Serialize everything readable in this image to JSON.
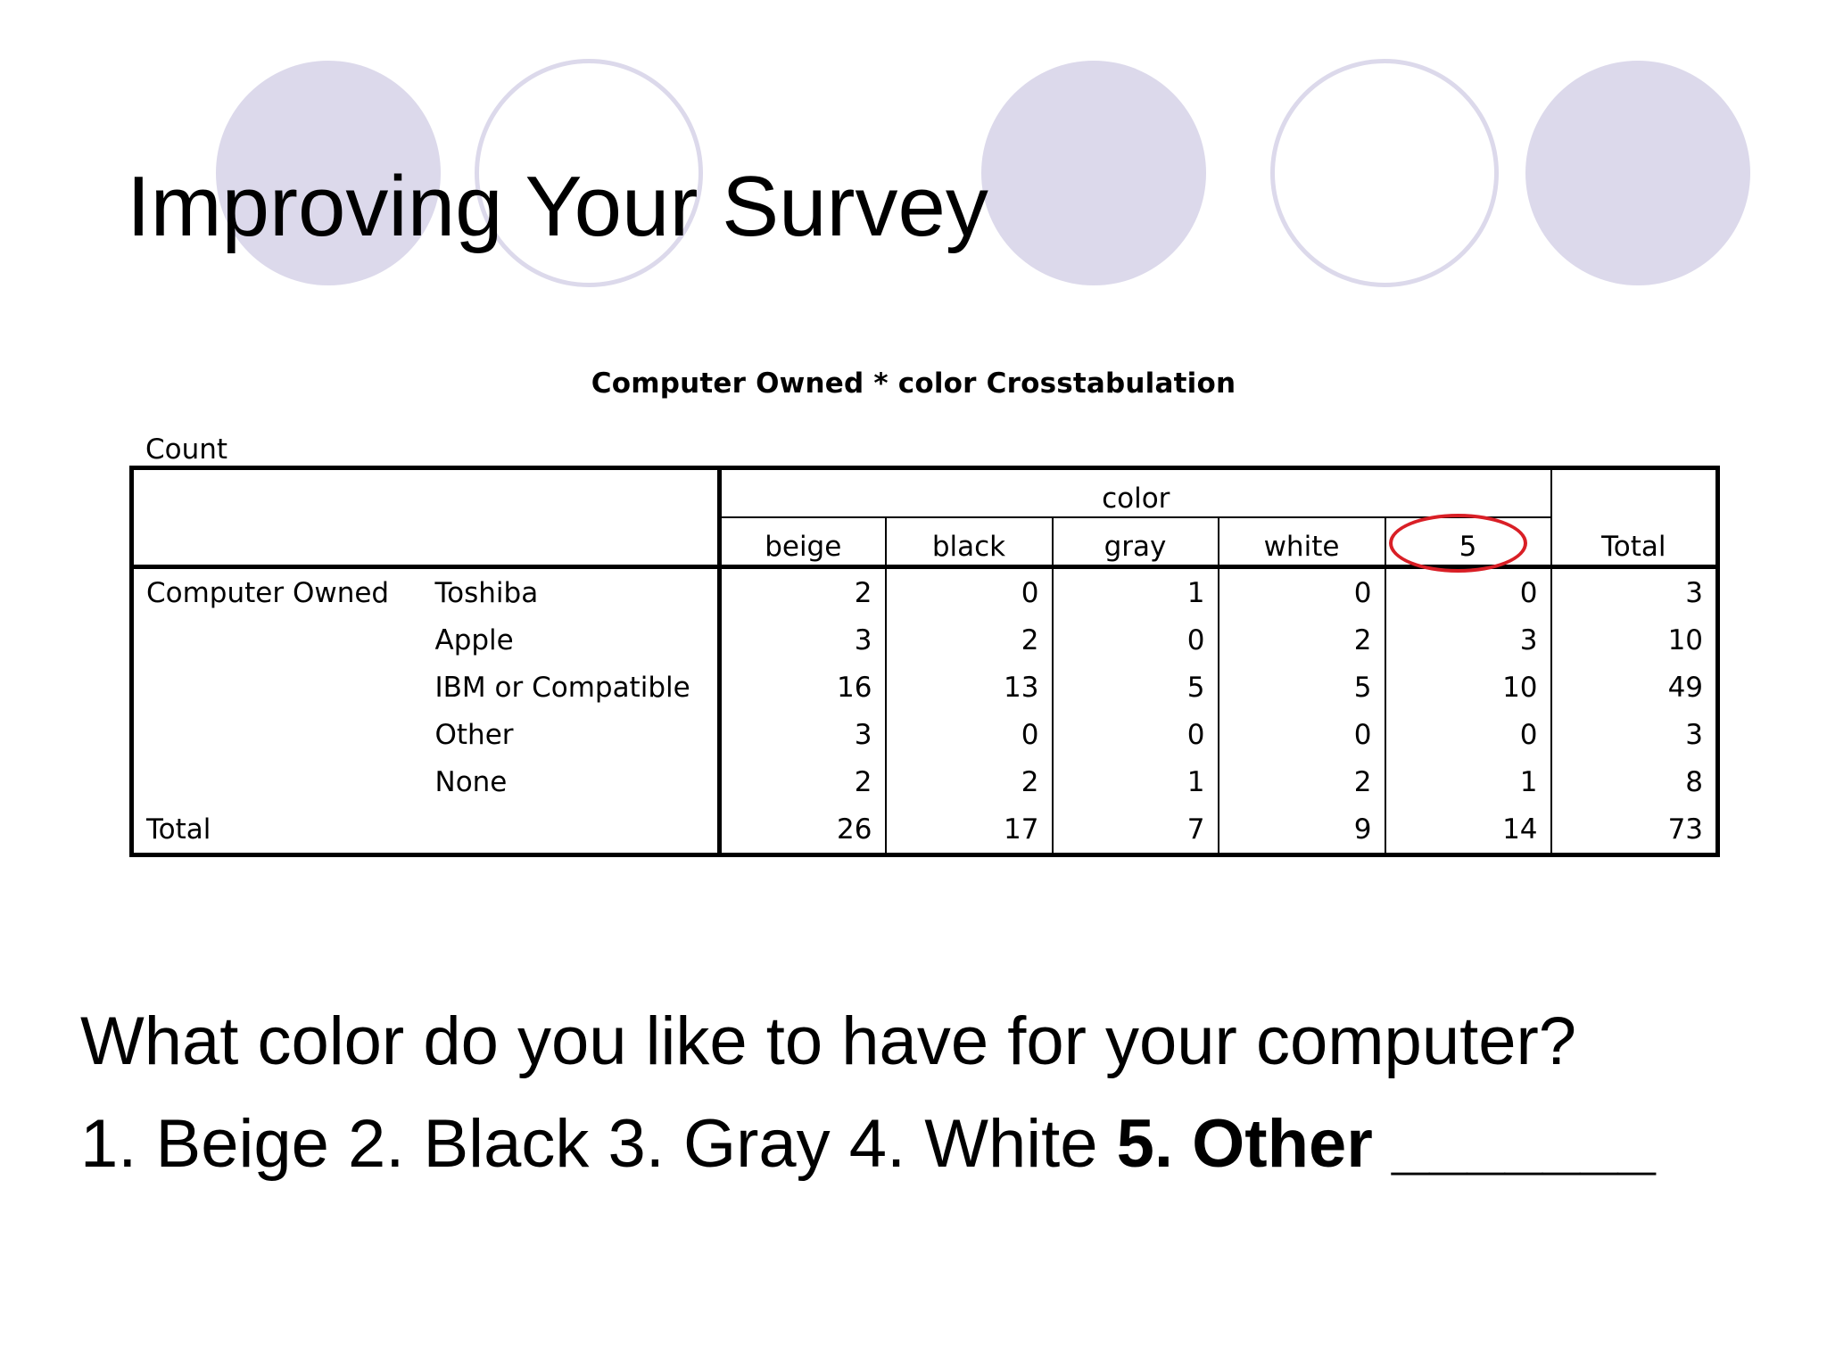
{
  "slide": {
    "title": "Improving Your Survey",
    "accent_color": "#dcd9eb",
    "highlight_color": "#d91f26"
  },
  "crosstab": {
    "title": "Computer Owned * color Crosstabulation",
    "count_label": "Count",
    "group_header": "color",
    "columns": [
      "beige",
      "black",
      "gray",
      "white",
      "5"
    ],
    "total_header": "Total",
    "row_group": "Computer Owned",
    "rows": [
      {
        "label": "Toshiba",
        "values": [
          "2",
          "0",
          "1",
          "0",
          "0"
        ],
        "total": "3"
      },
      {
        "label": "Apple",
        "values": [
          "3",
          "2",
          "0",
          "2",
          "3"
        ],
        "total": "10"
      },
      {
        "label": "IBM or Compatible",
        "values": [
          "16",
          "13",
          "5",
          "5",
          "10"
        ],
        "total": "49"
      },
      {
        "label": "Other",
        "values": [
          "3",
          "0",
          "0",
          "0",
          "0"
        ],
        "total": "3"
      },
      {
        "label": "None",
        "values": [
          "2",
          "2",
          "1",
          "2",
          "1"
        ],
        "total": "8"
      }
    ],
    "total_row": {
      "label": "Total",
      "values": [
        "26",
        "17",
        "7",
        "9",
        "14"
      ],
      "total": "73"
    }
  },
  "question": {
    "text": "What color do you like to have for your computer?",
    "options_plain": "1. Beige 2. Black 3. Gray 4. White ",
    "options_bold": "5. Other _______"
  }
}
